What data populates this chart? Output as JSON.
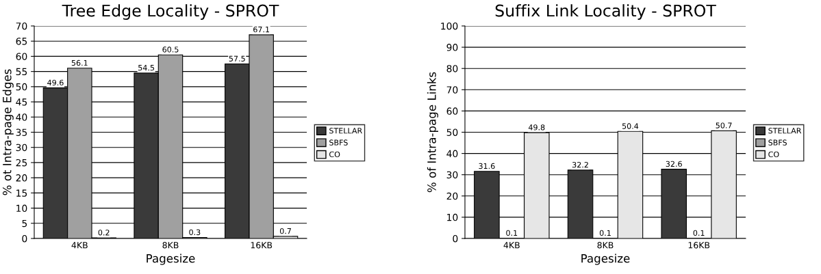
{
  "chart_data": [
    {
      "type": "bar",
      "title": "Tree Edge Locality - SPROT",
      "xlabel": "Pagesize",
      "ylabel": "% ot Intra-page Edges",
      "categories": [
        "4KB",
        "8KB",
        "16KB"
      ],
      "series": [
        {
          "name": "STELLAR",
          "color": "#3a3a3a",
          "values": [
            49.6,
            54.5,
            57.5
          ]
        },
        {
          "name": "SBFS",
          "color": "#a0a0a0",
          "values": [
            56.1,
            60.5,
            67.1
          ]
        },
        {
          "name": "CO",
          "color": "#e6e6e6",
          "values": [
            0.2,
            0.3,
            0.7
          ]
        }
      ],
      "ylim": [
        0,
        70
      ],
      "yticks": [
        0,
        5,
        10,
        15,
        20,
        25,
        30,
        35,
        40,
        45,
        50,
        55,
        60,
        65,
        70
      ],
      "grid": "y",
      "legend": "right",
      "data_labels": true
    },
    {
      "type": "bar",
      "title": "Suffix Link Locality - SPROT",
      "xlabel": "Pagesize",
      "ylabel": "% of Intra-page Links",
      "categories": [
        "4KB",
        "8KB",
        "16KB"
      ],
      "series": [
        {
          "name": "STELLAR",
          "color": "#3a3a3a",
          "values": [
            31.6,
            32.2,
            32.6
          ]
        },
        {
          "name": "SBFS",
          "color": "#a0a0a0",
          "values": [
            0.1,
            0.1,
            0.1
          ]
        },
        {
          "name": "CO",
          "color": "#e6e6e6",
          "values": [
            49.8,
            50.4,
            50.7
          ]
        }
      ],
      "ylim": [
        0,
        100
      ],
      "yticks": [
        0,
        10,
        20,
        30,
        40,
        50,
        60,
        70,
        80,
        90,
        100
      ],
      "grid": "y",
      "legend": "right",
      "data_labels": true
    }
  ]
}
